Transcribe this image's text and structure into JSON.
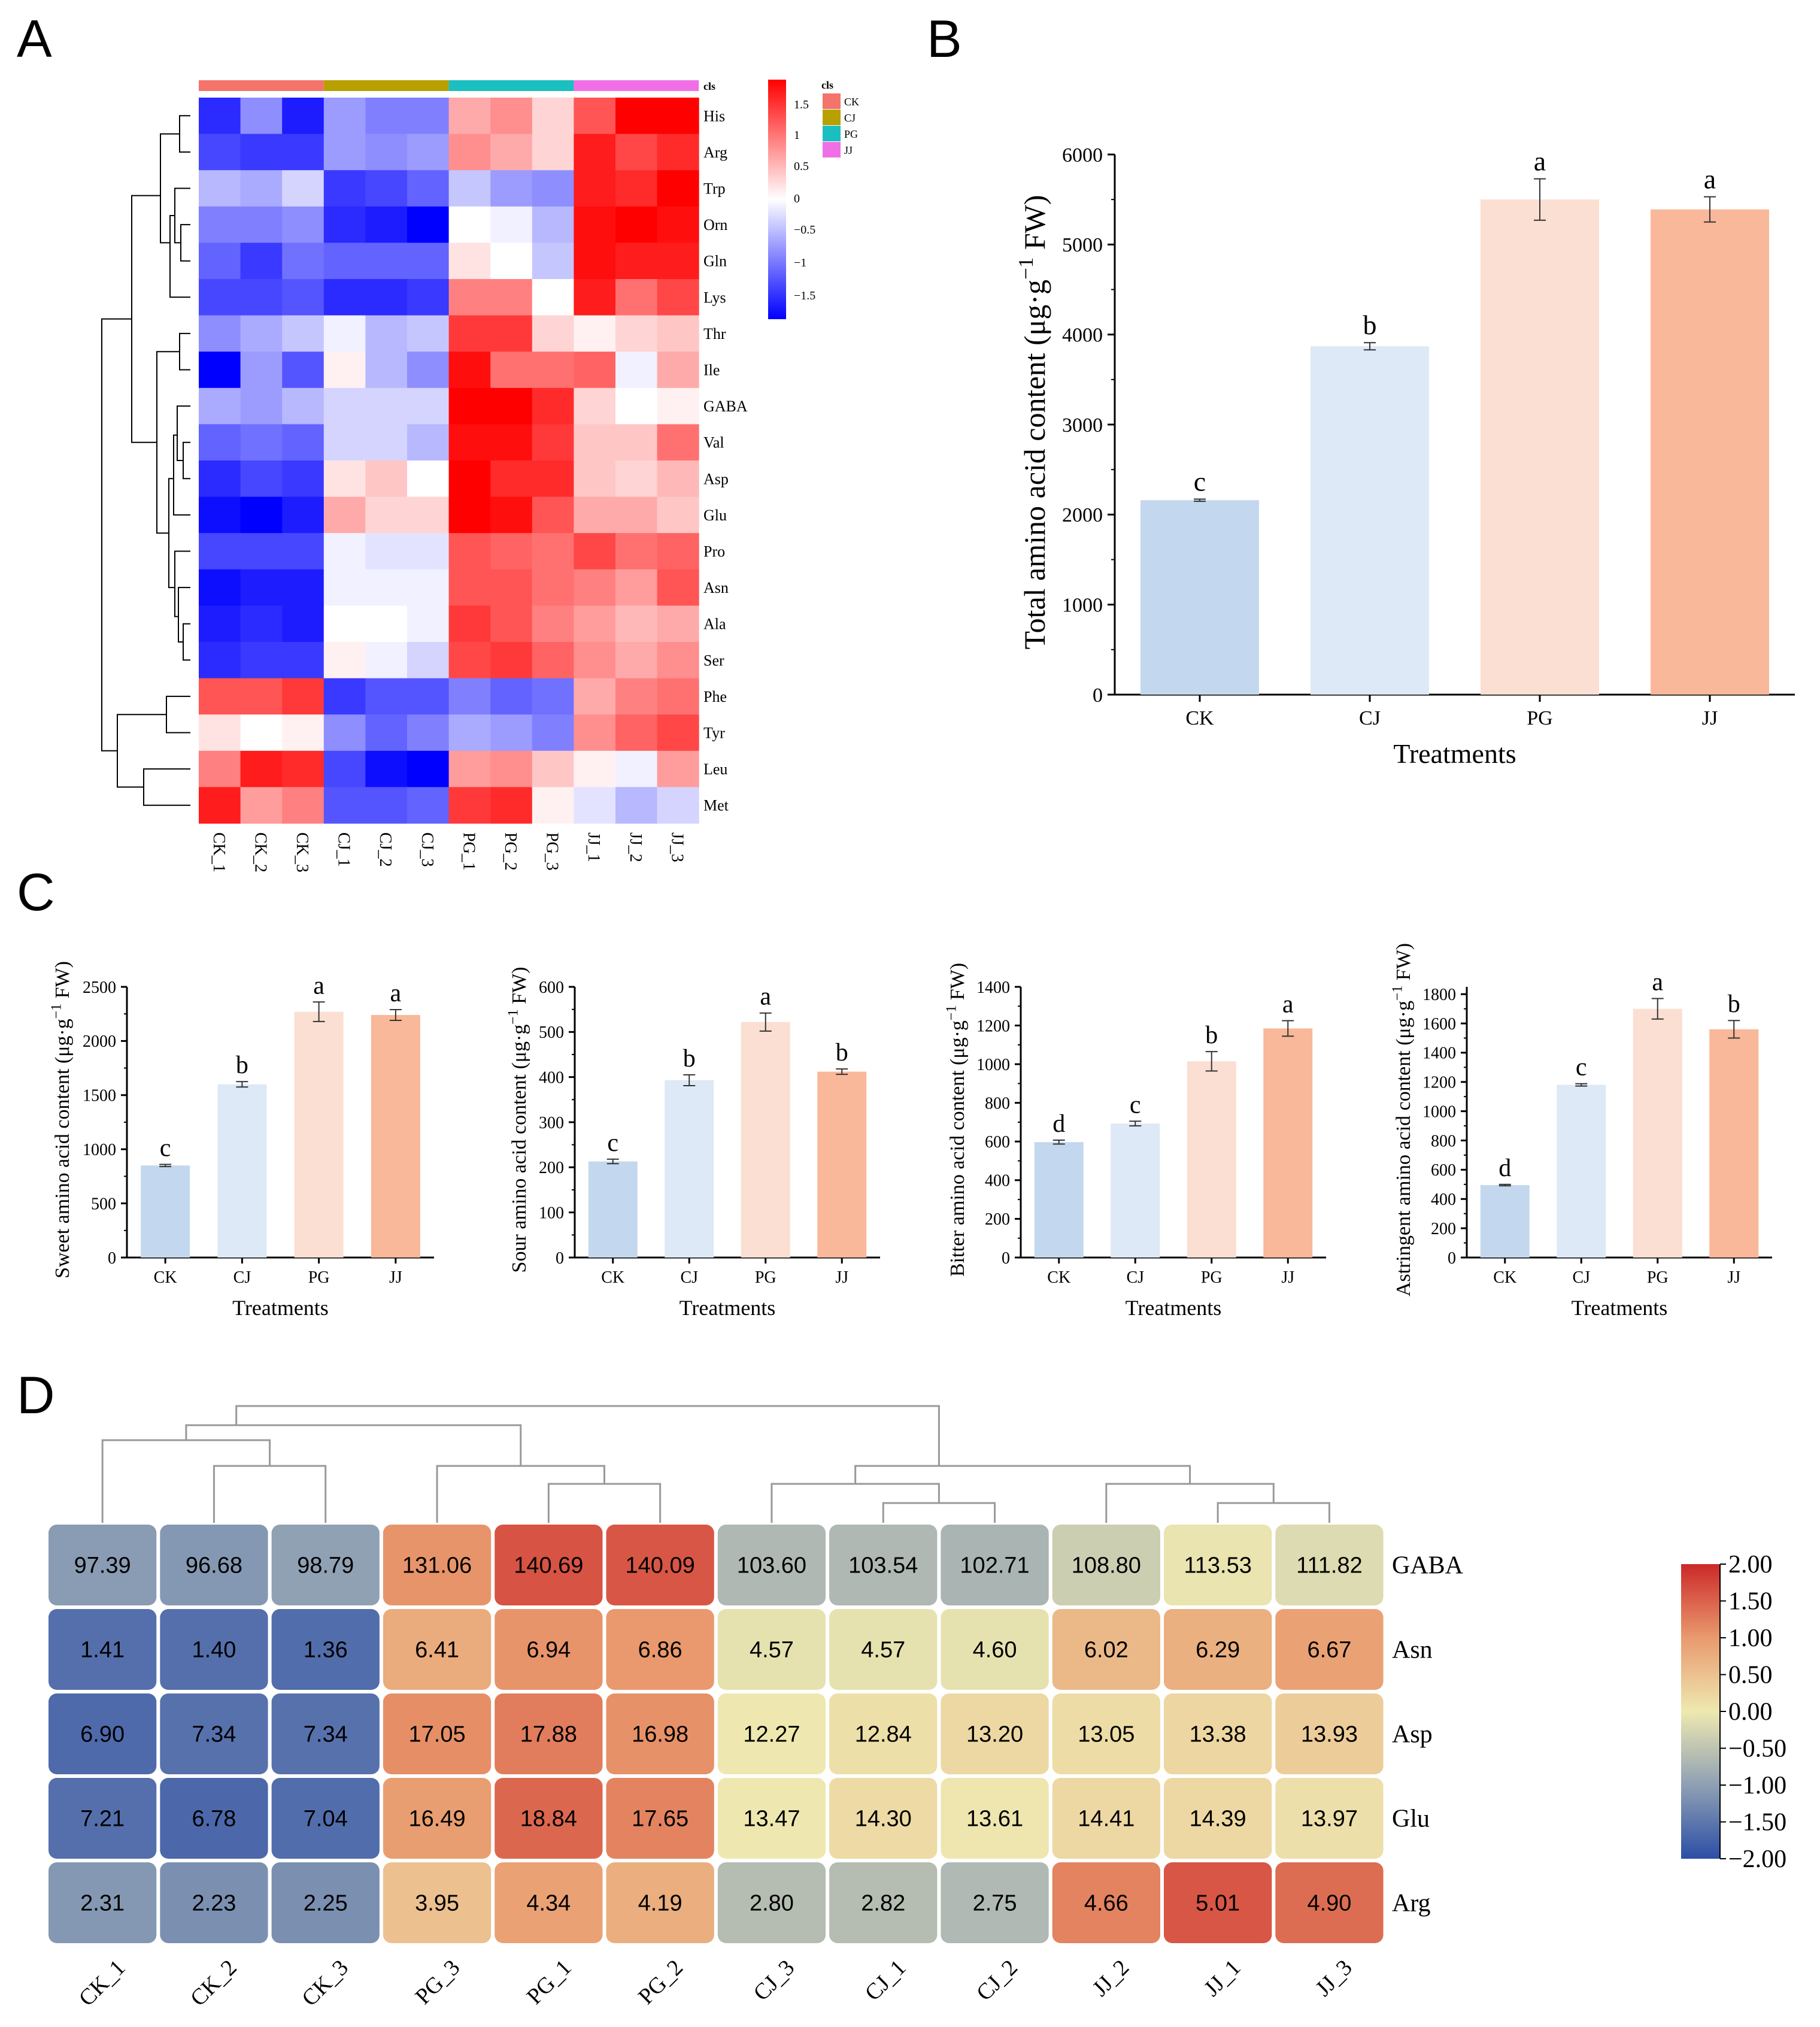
{
  "panel_labels": {
    "a": "A",
    "b": "B",
    "c": "C",
    "d": "D"
  },
  "colors": {
    "ck": "#C3D8EE",
    "cj": "#DDE9F6",
    "pg": "#FBDFD2",
    "jj": "#F9B899",
    "grp_ck": "#F4736B",
    "grp_cj": "#B8A000",
    "grp_pg": "#1BBFC0",
    "grp_jj": "#F06FE6"
  },
  "chart_data": [
    {
      "id": "A",
      "type": "heatmap",
      "cls_label": "cls",
      "groups": [
        "CK",
        "CJ",
        "PG",
        "JJ"
      ],
      "columns": [
        "CK_1",
        "CK_2",
        "CK_3",
        "CJ_1",
        "CJ_2",
        "CJ_3",
        "PG_1",
        "PG_2",
        "PG_3",
        "JJ_1",
        "JJ_2",
        "JJ_3"
      ],
      "rows": [
        "His",
        "Arg",
        "Trp",
        "Orn",
        "Gln",
        "Lys",
        "Thr",
        "Ile",
        "GABA",
        "Val",
        "Asp",
        "Glu",
        "Pro",
        "Asn",
        "Ala",
        "Ser",
        "Phe",
        "Tyr",
        "Leu",
        "Met"
      ],
      "colorbar_ticks": [
        "1.5",
        "1",
        "0.5",
        "0",
        "−0.5",
        "−1",
        "−1.5"
      ],
      "colorbar_range": [
        -1.8,
        1.8
      ],
      "values": [
        [
          -1.5,
          -0.8,
          -1.6,
          -0.7,
          -0.9,
          -0.9,
          0.6,
          0.8,
          0.3,
          1.2,
          1.8,
          1.8
        ],
        [
          -1.3,
          -1.4,
          -1.4,
          -0.7,
          -0.8,
          -0.7,
          0.8,
          0.6,
          0.3,
          1.6,
          1.3,
          1.5
        ],
        [
          -0.5,
          -0.6,
          -0.3,
          -1.4,
          -1.3,
          -1.1,
          -0.4,
          -0.7,
          -0.8,
          1.6,
          1.5,
          1.8
        ],
        [
          -0.9,
          -0.9,
          -0.8,
          -1.5,
          -1.6,
          -1.8,
          0.0,
          -0.1,
          -0.5,
          1.7,
          1.8,
          1.7
        ],
        [
          -1.1,
          -1.4,
          -1.0,
          -1.1,
          -1.1,
          -1.1,
          0.2,
          0.0,
          -0.4,
          1.7,
          1.6,
          1.6
        ],
        [
          -1.3,
          -1.3,
          -1.2,
          -1.5,
          -1.5,
          -1.4,
          0.9,
          0.9,
          0.0,
          1.6,
          1.0,
          1.3
        ],
        [
          -0.8,
          -0.6,
          -0.4,
          -0.1,
          -0.5,
          -0.4,
          1.4,
          1.4,
          0.3,
          0.1,
          0.3,
          0.4
        ],
        [
          -1.9,
          -0.7,
          -1.2,
          0.1,
          -0.5,
          -0.8,
          1.7,
          1.0,
          1.0,
          1.1,
          -0.1,
          0.6
        ],
        [
          -0.6,
          -0.7,
          -0.5,
          -0.3,
          -0.3,
          -0.3,
          1.9,
          1.9,
          1.5,
          0.3,
          0.0,
          0.1
        ],
        [
          -1.1,
          -1.0,
          -1.1,
          -0.3,
          -0.3,
          -0.5,
          1.7,
          1.7,
          1.4,
          0.4,
          0.4,
          1.0
        ],
        [
          -1.5,
          -1.3,
          -1.4,
          0.2,
          0.4,
          0.0,
          1.8,
          1.5,
          1.5,
          0.4,
          0.3,
          0.5
        ],
        [
          -1.7,
          -1.8,
          -1.6,
          0.6,
          0.3,
          0.3,
          1.9,
          1.7,
          1.2,
          0.6,
          0.6,
          0.4
        ],
        [
          -1.3,
          -1.3,
          -1.3,
          -0.1,
          -0.2,
          -0.2,
          1.2,
          1.1,
          1.0,
          1.3,
          1.0,
          1.1
        ],
        [
          -1.7,
          -1.6,
          -1.6,
          -0.1,
          -0.1,
          -0.1,
          1.2,
          1.2,
          1.0,
          0.9,
          0.7,
          1.2
        ],
        [
          -1.6,
          -1.5,
          -1.6,
          0.0,
          0.0,
          -0.1,
          1.4,
          1.2,
          0.9,
          0.7,
          0.5,
          0.6
        ],
        [
          -1.5,
          -1.4,
          -1.4,
          0.1,
          -0.1,
          -0.3,
          1.3,
          1.4,
          1.1,
          0.8,
          0.6,
          0.8
        ],
        [
          1.2,
          1.2,
          1.4,
          -1.4,
          -1.2,
          -1.2,
          -0.9,
          -1.1,
          -1.0,
          0.6,
          0.9,
          1.0
        ],
        [
          0.2,
          0.0,
          0.1,
          -0.8,
          -1.1,
          -0.9,
          -0.6,
          -0.7,
          -0.9,
          0.8,
          1.1,
          1.3
        ],
        [
          0.9,
          1.6,
          1.5,
          -1.3,
          -1.7,
          -2.0,
          0.7,
          0.8,
          0.4,
          0.1,
          -0.1,
          0.7
        ],
        [
          1.6,
          0.7,
          0.9,
          -1.2,
          -1.2,
          -1.1,
          1.4,
          1.5,
          0.1,
          -0.2,
          -0.5,
          -0.3
        ]
      ]
    },
    {
      "id": "B",
      "type": "bar",
      "categories": [
        "CK",
        "CJ",
        "PG",
        "JJ"
      ],
      "values": [
        2160,
        3870,
        5500,
        5390
      ],
      "errors": [
        12,
        40,
        230,
        140
      ],
      "letters": [
        "c",
        "b",
        "a",
        "a"
      ],
      "xlabel": "Treatments",
      "ylabel": "Total amino acid content (μg·g",
      "ylabel_sup": "−1",
      "ylabel_end": " FW)",
      "ylim": [
        0,
        6000
      ],
      "yticks": [
        0,
        1000,
        2000,
        3000,
        4000,
        5000,
        6000
      ]
    },
    {
      "id": "C1",
      "type": "bar",
      "categories": [
        "CK",
        "CJ",
        "PG",
        "JJ"
      ],
      "values": [
        850,
        1600,
        2270,
        2240
      ],
      "errors": [
        10,
        25,
        90,
        50
      ],
      "letters": [
        "c",
        "b",
        "a",
        "a"
      ],
      "xlabel": "Treatments",
      "ylabel": "Sweet amino acid content (μg·g",
      "ylabel_sup": "−1",
      "ylabel_end": " FW)",
      "ylim": [
        0,
        2500
      ],
      "yticks": [
        0,
        500,
        1000,
        1500,
        2000,
        2500
      ]
    },
    {
      "id": "C2",
      "type": "bar",
      "categories": [
        "CK",
        "CJ",
        "PG",
        "JJ"
      ],
      "values": [
        213,
        393,
        522,
        412
      ],
      "errors": [
        5,
        12,
        20,
        6
      ],
      "letters": [
        "c",
        "b",
        "a",
        "b"
      ],
      "xlabel": "Treatments",
      "ylabel": "Sour amino acid content (μg·g",
      "ylabel_sup": "−1",
      "ylabel_end": " FW)",
      "ylim": [
        0,
        600
      ],
      "yticks": [
        0,
        100,
        200,
        300,
        400,
        500,
        600
      ]
    },
    {
      "id": "C3",
      "type": "bar",
      "categories": [
        "CK",
        "CJ",
        "PG",
        "JJ"
      ],
      "values": [
        597,
        693,
        1015,
        1185
      ],
      "errors": [
        10,
        12,
        50,
        40
      ],
      "letters": [
        "d",
        "c",
        "b",
        "a"
      ],
      "xlabel": "Treatments",
      "ylabel": "Bitter amino acid content (μg·g",
      "ylabel_sup": "−1",
      "ylabel_end": " FW)",
      "ylim": [
        0,
        1400
      ],
      "yticks": [
        0,
        200,
        400,
        600,
        800,
        1000,
        1200,
        1400
      ]
    },
    {
      "id": "C4",
      "type": "bar",
      "categories": [
        "CK",
        "CJ",
        "PG",
        "JJ"
      ],
      "values": [
        495,
        1180,
        1700,
        1560
      ],
      "errors": [
        5,
        8,
        70,
        60
      ],
      "letters": [
        "d",
        "c",
        "a",
        "b"
      ],
      "xlabel": "Treatments",
      "ylabel": "Astringent amino acid content (μg·g",
      "ylabel_sup": "−1",
      "ylabel_end": " FW)",
      "ylim": [
        0,
        1850
      ],
      "yticks": [
        0,
        200,
        400,
        600,
        800,
        1000,
        1200,
        1400,
        1600,
        1800
      ]
    },
    {
      "id": "D",
      "type": "heatmap",
      "columns": [
        "CK_1",
        "CK_2",
        "CK_3",
        "PG_3",
        "PG_1",
        "PG_2",
        "CJ_3",
        "CJ_1",
        "CJ_2",
        "JJ_2",
        "JJ_1",
        "JJ_3"
      ],
      "rows": [
        "GABA",
        "Asn",
        "Asp",
        "Glu",
        "Arg"
      ],
      "cell_labels": [
        [
          "97.39",
          "96.68",
          "98.79",
          "131.06",
          "140.69",
          "140.09",
          "103.60",
          "103.54",
          "102.71",
          "108.80",
          "113.53",
          "111.82"
        ],
        [
          "1.41",
          "1.40",
          "1.36",
          "6.41",
          "6.94",
          "6.86",
          "4.57",
          "4.57",
          "4.60",
          "6.02",
          "6.29",
          "6.67"
        ],
        [
          "6.90",
          "7.34",
          "7.34",
          "17.05",
          "17.88",
          "16.98",
          "12.27",
          "12.84",
          "13.20",
          "13.05",
          "13.38",
          "13.93"
        ],
        [
          "7.21",
          "6.78",
          "7.04",
          "16.49",
          "18.84",
          "17.65",
          "13.47",
          "14.30",
          "13.61",
          "14.41",
          "14.39",
          "13.97"
        ],
        [
          "2.31",
          "2.23",
          "2.25",
          "3.95",
          "4.34",
          "4.19",
          "2.80",
          "2.82",
          "2.75",
          "4.66",
          "5.01",
          "4.90"
        ]
      ],
      "scaled": [
        [
          -1.05,
          -1.1,
          -0.98,
          1.05,
          1.63,
          1.6,
          -0.66,
          -0.66,
          -0.72,
          -0.36,
          -0.05,
          -0.18
        ],
        [
          -1.6,
          -1.6,
          -1.62,
          0.78,
          1.05,
          1.01,
          -0.09,
          -0.09,
          -0.08,
          0.6,
          0.72,
          0.9
        ],
        [
          -1.66,
          -1.57,
          -1.57,
          1.1,
          1.26,
          1.08,
          0.0,
          0.12,
          0.2,
          0.16,
          0.23,
          0.34
        ],
        [
          -1.6,
          -1.68,
          -1.62,
          0.95,
          1.45,
          1.2,
          0.0,
          0.18,
          0.03,
          0.2,
          0.2,
          0.11
        ],
        [
          -1.1,
          -1.2,
          -1.2,
          0.5,
          0.9,
          0.75,
          -0.6,
          -0.6,
          -0.65,
          1.2,
          1.6,
          1.4
        ]
      ],
      "colorbar_ticks": [
        "2.00",
        "1.50",
        "1.00",
        "0.50",
        "0.00",
        "−0.50",
        "−1.00",
        "−1.50",
        "−2.00"
      ],
      "colorbar_range": [
        -2,
        2
      ]
    }
  ]
}
